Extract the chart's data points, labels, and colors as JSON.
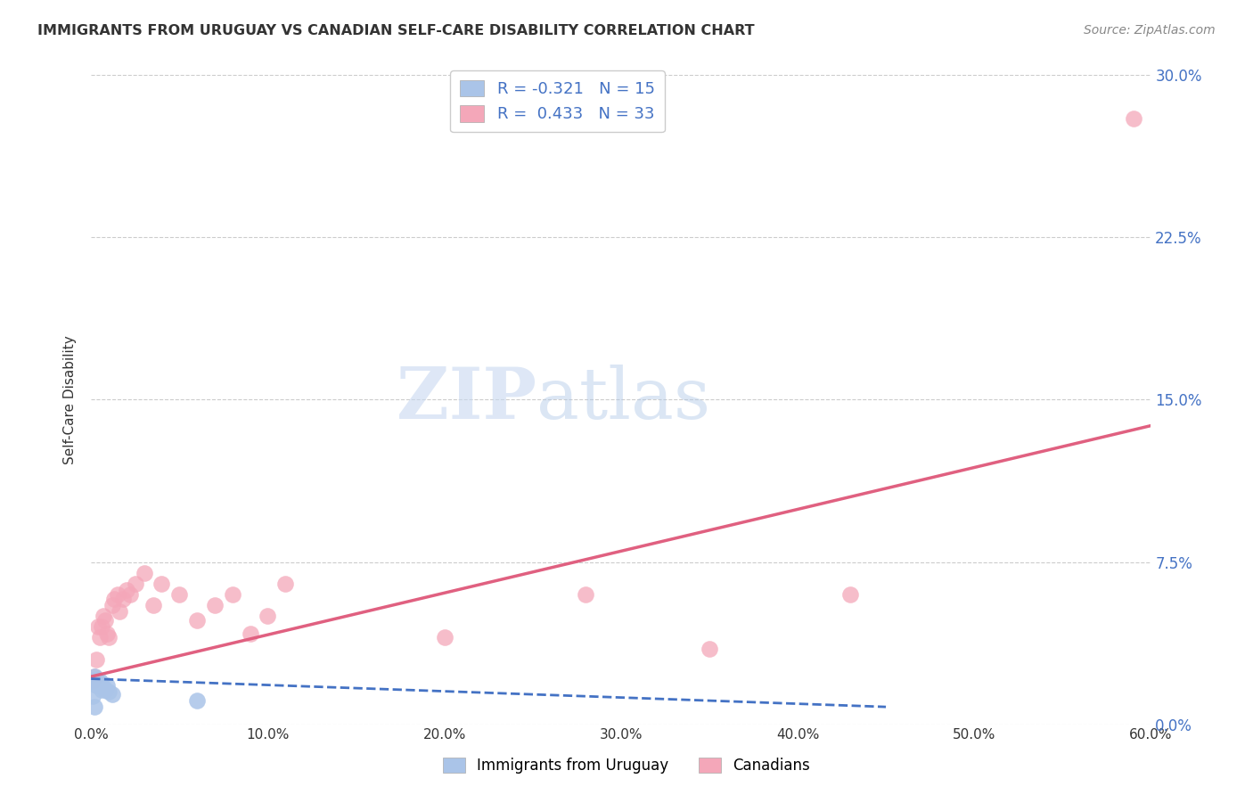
{
  "title": "IMMIGRANTS FROM URUGUAY VS CANADIAN SELF-CARE DISABILITY CORRELATION CHART",
  "source": "Source: ZipAtlas.com",
  "xlabel_ticks": [
    "0.0%",
    "10.0%",
    "20.0%",
    "30.0%",
    "40.0%",
    "50.0%",
    "60.0%"
  ],
  "xlabel_vals": [
    0.0,
    0.1,
    0.2,
    0.3,
    0.4,
    0.5,
    0.6
  ],
  "ylabel": "Self-Care Disability",
  "ylabel_ticks": [
    "0.0%",
    "7.5%",
    "15.0%",
    "22.5%",
    "30.0%"
  ],
  "ylabel_vals": [
    0.0,
    0.075,
    0.15,
    0.225,
    0.3
  ],
  "xlim": [
    0.0,
    0.6
  ],
  "ylim": [
    0.0,
    0.3
  ],
  "grid_color": "#cccccc",
  "background_color": "#ffffff",
  "uruguay_color": "#aac4e8",
  "canada_color": "#f4a7b9",
  "uruguay_line_color": "#4472c4",
  "canada_line_color": "#e06080",
  "uruguay_R": -0.321,
  "uruguay_N": 15,
  "canada_R": 0.433,
  "canada_N": 33,
  "uruguay_points_x": [
    0.001,
    0.002,
    0.003,
    0.003,
    0.004,
    0.005,
    0.006,
    0.007,
    0.008,
    0.009,
    0.01,
    0.012,
    0.001,
    0.06,
    0.002
  ],
  "uruguay_points_y": [
    0.02,
    0.022,
    0.021,
    0.018,
    0.019,
    0.02,
    0.016,
    0.017,
    0.016,
    0.018,
    0.015,
    0.014,
    0.013,
    0.011,
    0.008
  ],
  "canada_points_x": [
    0.001,
    0.002,
    0.003,
    0.004,
    0.005,
    0.006,
    0.007,
    0.008,
    0.009,
    0.01,
    0.012,
    0.013,
    0.015,
    0.016,
    0.018,
    0.02,
    0.022,
    0.025,
    0.03,
    0.035,
    0.04,
    0.05,
    0.06,
    0.07,
    0.08,
    0.09,
    0.1,
    0.11,
    0.2,
    0.28,
    0.35,
    0.43,
    0.59
  ],
  "canada_points_y": [
    0.02,
    0.022,
    0.03,
    0.045,
    0.04,
    0.045,
    0.05,
    0.048,
    0.042,
    0.04,
    0.055,
    0.058,
    0.06,
    0.052,
    0.058,
    0.062,
    0.06,
    0.065,
    0.07,
    0.055,
    0.065,
    0.06,
    0.048,
    0.055,
    0.06,
    0.042,
    0.05,
    0.065,
    0.04,
    0.06,
    0.035,
    0.06,
    0.28
  ],
  "canada_line_x0": 0.0,
  "canada_line_y0": 0.022,
  "canada_line_x1": 0.6,
  "canada_line_y1": 0.138,
  "uruguay_line_x0": 0.0,
  "uruguay_line_y0": 0.021,
  "uruguay_line_x1": 0.45,
  "uruguay_line_y1": 0.008
}
